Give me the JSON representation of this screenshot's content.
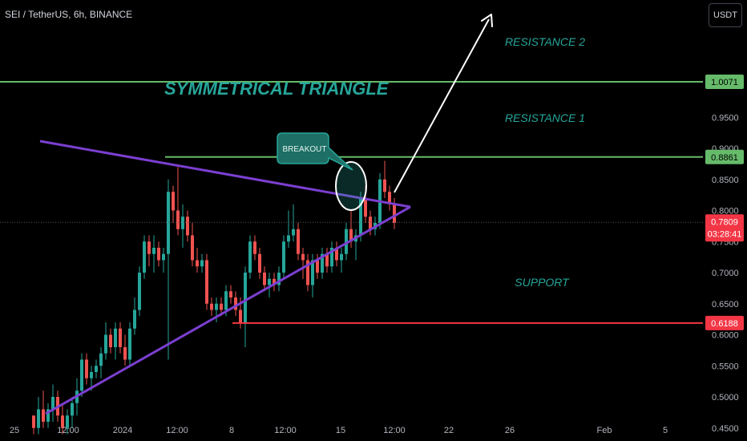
{
  "header": {
    "symbol_text": "SEI / TetherUS, 6h, BINANCE",
    "currency_button": "USDT"
  },
  "colors": {
    "up": "#26a69a",
    "down": "#ef5350",
    "resistance": "#66bb6a",
    "support": "#f23645",
    "triangle": "#7b3fd0",
    "label_teal": "#26a69a",
    "price_tag": "#f23645"
  },
  "chart_data": {
    "type": "candlestick",
    "title": "SYMMETRICAL TRIANGLE",
    "y_axis_ticks": [
      "0.9500",
      "0.9000",
      "0.8500",
      "0.8000",
      "0.7500",
      "0.7000",
      "0.6500",
      "0.6000",
      "0.5500",
      "0.5000",
      "0.4500"
    ],
    "ylim": [
      0.41,
      1.08
    ],
    "x_axis_ticks": [
      "25",
      "12:00",
      "2024",
      "12:00",
      "8",
      "12:00",
      "15",
      "12:00",
      "22",
      "26",
      "Feb",
      "5"
    ],
    "levels": [
      {
        "label": "RESISTANCE 2",
        "price": 1.0071,
        "tag": "1.0071"
      },
      {
        "label": "RESISTANCE 1",
        "price": 0.8861,
        "tag": "0.8861"
      },
      {
        "label": "SUPPORT",
        "price": 0.6188,
        "tag": "0.6188"
      }
    ],
    "current_price": {
      "price": 0.7809,
      "tag": "0.7809",
      "countdown": "03:28:41"
    },
    "annotations": {
      "breakout": "BREAKOUT"
    },
    "candles": [
      [
        0.47,
        0.47,
        0.44,
        0.45
      ],
      [
        0.45,
        0.5,
        0.44,
        0.48
      ],
      [
        0.48,
        0.51,
        0.45,
        0.46
      ],
      [
        0.46,
        0.49,
        0.45,
        0.48
      ],
      [
        0.48,
        0.52,
        0.46,
        0.5
      ],
      [
        0.5,
        0.51,
        0.46,
        0.47
      ],
      [
        0.47,
        0.49,
        0.44,
        0.45
      ],
      [
        0.45,
        0.48,
        0.44,
        0.47
      ],
      [
        0.47,
        0.5,
        0.45,
        0.49
      ],
      [
        0.49,
        0.53,
        0.47,
        0.51
      ],
      [
        0.51,
        0.57,
        0.5,
        0.56
      ],
      [
        0.56,
        0.57,
        0.52,
        0.53
      ],
      [
        0.53,
        0.55,
        0.51,
        0.54
      ],
      [
        0.54,
        0.56,
        0.53,
        0.55
      ],
      [
        0.55,
        0.58,
        0.53,
        0.57
      ],
      [
        0.57,
        0.62,
        0.56,
        0.6
      ],
      [
        0.6,
        0.61,
        0.57,
        0.58
      ],
      [
        0.58,
        0.62,
        0.56,
        0.61
      ],
      [
        0.61,
        0.62,
        0.57,
        0.58
      ],
      [
        0.58,
        0.6,
        0.55,
        0.56
      ],
      [
        0.56,
        0.62,
        0.55,
        0.61
      ],
      [
        0.61,
        0.66,
        0.6,
        0.64
      ],
      [
        0.64,
        0.71,
        0.63,
        0.7
      ],
      [
        0.7,
        0.76,
        0.69,
        0.75
      ],
      [
        0.75,
        0.76,
        0.71,
        0.73
      ],
      [
        0.73,
        0.76,
        0.7,
        0.74
      ],
      [
        0.74,
        0.75,
        0.71,
        0.72
      ],
      [
        0.72,
        0.74,
        0.7,
        0.73
      ],
      [
        0.73,
        0.85,
        0.56,
        0.83
      ],
      [
        0.83,
        0.84,
        0.78,
        0.8
      ],
      [
        0.8,
        0.87,
        0.76,
        0.77
      ],
      [
        0.77,
        0.81,
        0.74,
        0.79
      ],
      [
        0.79,
        0.8,
        0.75,
        0.76
      ],
      [
        0.76,
        0.78,
        0.71,
        0.72
      ],
      [
        0.72,
        0.74,
        0.7,
        0.71
      ],
      [
        0.71,
        0.73,
        0.7,
        0.72
      ],
      [
        0.72,
        0.73,
        0.64,
        0.65
      ],
      [
        0.65,
        0.66,
        0.63,
        0.64
      ],
      [
        0.64,
        0.66,
        0.62,
        0.65
      ],
      [
        0.65,
        0.66,
        0.63,
        0.64
      ],
      [
        0.64,
        0.68,
        0.63,
        0.67
      ],
      [
        0.67,
        0.68,
        0.65,
        0.66
      ],
      [
        0.66,
        0.67,
        0.63,
        0.64
      ],
      [
        0.64,
        0.66,
        0.61,
        0.62
      ],
      [
        0.62,
        0.71,
        0.58,
        0.7
      ],
      [
        0.7,
        0.76,
        0.69,
        0.75
      ],
      [
        0.75,
        0.76,
        0.72,
        0.73
      ],
      [
        0.73,
        0.74,
        0.69,
        0.7
      ],
      [
        0.7,
        0.71,
        0.67,
        0.68
      ],
      [
        0.68,
        0.7,
        0.66,
        0.69
      ],
      [
        0.69,
        0.7,
        0.67,
        0.68
      ],
      [
        0.68,
        0.71,
        0.67,
        0.7
      ],
      [
        0.7,
        0.76,
        0.69,
        0.75
      ],
      [
        0.75,
        0.8,
        0.74,
        0.76
      ],
      [
        0.76,
        0.81,
        0.75,
        0.77
      ],
      [
        0.77,
        0.78,
        0.72,
        0.73
      ],
      [
        0.73,
        0.74,
        0.69,
        0.72
      ],
      [
        0.72,
        0.73,
        0.67,
        0.68
      ],
      [
        0.68,
        0.73,
        0.66,
        0.72
      ],
      [
        0.72,
        0.73,
        0.69,
        0.7
      ],
      [
        0.7,
        0.74,
        0.69,
        0.73
      ],
      [
        0.73,
        0.74,
        0.7,
        0.71
      ],
      [
        0.71,
        0.75,
        0.7,
        0.74
      ],
      [
        0.74,
        0.75,
        0.71,
        0.72
      ],
      [
        0.72,
        0.74,
        0.7,
        0.73
      ],
      [
        0.73,
        0.78,
        0.72,
        0.77
      ],
      [
        0.77,
        0.8,
        0.74,
        0.75
      ],
      [
        0.75,
        0.77,
        0.72,
        0.76
      ],
      [
        0.76,
        0.83,
        0.75,
        0.82
      ],
      [
        0.82,
        0.84,
        0.78,
        0.79
      ],
      [
        0.79,
        0.8,
        0.76,
        0.77
      ],
      [
        0.77,
        0.79,
        0.76,
        0.78
      ],
      [
        0.78,
        0.86,
        0.77,
        0.85
      ],
      [
        0.85,
        0.88,
        0.82,
        0.83
      ],
      [
        0.83,
        0.84,
        0.8,
        0.81
      ],
      [
        0.81,
        0.82,
        0.77,
        0.78
      ]
    ]
  }
}
